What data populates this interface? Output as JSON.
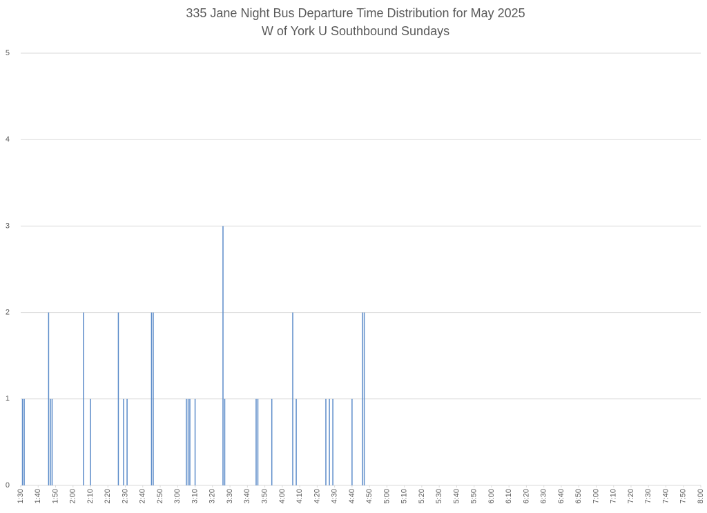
{
  "chart_data": {
    "type": "bar",
    "title": "335 Jane Night Bus Departure Time Distribution for May 2025",
    "subtitle": "W of York U Southbound Sundays",
    "x": [
      91,
      92,
      106,
      107,
      108,
      126,
      130,
      146,
      149,
      151,
      165,
      166,
      185,
      186,
      187,
      190,
      206,
      207,
      225,
      226,
      234,
      246,
      248,
      265,
      267,
      269,
      280,
      286,
      287
    ],
    "values": [
      1,
      1,
      2,
      1,
      1,
      2,
      1,
      2,
      1,
      1,
      2,
      2,
      1,
      1,
      1,
      1,
      3,
      1,
      1,
      1,
      1,
      2,
      1,
      1,
      1,
      1,
      1,
      2,
      2
    ],
    "color": "#5b8bc9",
    "xlim": [
      90,
      480
    ],
    "xticks": [
      {
        "value": 90,
        "label": "1:30"
      },
      {
        "value": 100,
        "label": "1:40"
      },
      {
        "value": 110,
        "label": "1:50"
      },
      {
        "value": 120,
        "label": "2:00"
      },
      {
        "value": 130,
        "label": "2:10"
      },
      {
        "value": 140,
        "label": "2:20"
      },
      {
        "value": 150,
        "label": "2:30"
      },
      {
        "value": 160,
        "label": "2:40"
      },
      {
        "value": 170,
        "label": "2:50"
      },
      {
        "value": 180,
        "label": "3:00"
      },
      {
        "value": 190,
        "label": "3:10"
      },
      {
        "value": 200,
        "label": "3:20"
      },
      {
        "value": 210,
        "label": "3:30"
      },
      {
        "value": 220,
        "label": "3:40"
      },
      {
        "value": 230,
        "label": "3:50"
      },
      {
        "value": 240,
        "label": "4:00"
      },
      {
        "value": 250,
        "label": "4:10"
      },
      {
        "value": 260,
        "label": "4:20"
      },
      {
        "value": 270,
        "label": "4:30"
      },
      {
        "value": 280,
        "label": "4:40"
      },
      {
        "value": 290,
        "label": "4:50"
      },
      {
        "value": 300,
        "label": "5:00"
      },
      {
        "value": 310,
        "label": "5:10"
      },
      {
        "value": 320,
        "label": "5:20"
      },
      {
        "value": 330,
        "label": "5:30"
      },
      {
        "value": 340,
        "label": "5:40"
      },
      {
        "value": 350,
        "label": "5:50"
      },
      {
        "value": 360,
        "label": "6:00"
      },
      {
        "value": 370,
        "label": "6:10"
      },
      {
        "value": 380,
        "label": "6:20"
      },
      {
        "value": 390,
        "label": "6:30"
      },
      {
        "value": 400,
        "label": "6:40"
      },
      {
        "value": 410,
        "label": "6:50"
      },
      {
        "value": 420,
        "label": "7:00"
      },
      {
        "value": 430,
        "label": "7:10"
      },
      {
        "value": 440,
        "label": "7:20"
      },
      {
        "value": 450,
        "label": "7:30"
      },
      {
        "value": 460,
        "label": "7:40"
      },
      {
        "value": 470,
        "label": "7:50"
      },
      {
        "value": 480,
        "label": "8:00"
      }
    ],
    "ylim": [
      0,
      5
    ],
    "yticks": [
      0,
      1,
      2,
      3,
      4,
      5
    ],
    "grid": true
  }
}
